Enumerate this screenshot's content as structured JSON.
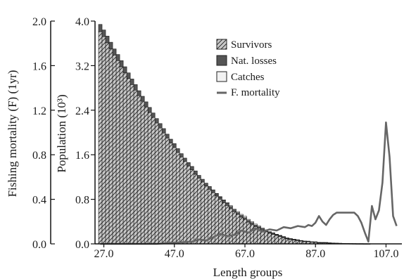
{
  "chart_data": {
    "type": "bar",
    "xlabel": "Length groups",
    "ylabel": "Population (10³)",
    "y2label": "Fishing mortality (F) (1yr)",
    "x_tick_labels": [
      "27.0",
      "47.0",
      "67.0",
      "87.0",
      "107.0"
    ],
    "y_tick_labels": [
      "0.0",
      "0.8",
      "1.6",
      "2.4",
      "3.2",
      "4.0"
    ],
    "y2_tick_labels": [
      "0.0",
      "0.4",
      "0.8",
      "1.2",
      "1.6",
      "2.0"
    ],
    "xlim": [
      24.5,
      111.5
    ],
    "ylim": [
      0,
      4.0
    ],
    "y2lim": [
      0,
      2.0
    ],
    "legend_position": "top-right",
    "x": [
      26,
      27,
      28,
      29,
      30,
      31,
      32,
      33,
      34,
      35,
      36,
      37,
      38,
      39,
      40,
      41,
      42,
      43,
      44,
      45,
      46,
      47,
      48,
      49,
      50,
      51,
      52,
      53,
      54,
      55,
      56,
      57,
      58,
      59,
      60,
      61,
      62,
      63,
      64,
      65,
      66,
      67,
      68,
      69,
      70,
      71,
      72,
      73,
      74,
      75,
      76,
      77,
      78,
      79,
      80,
      81,
      82,
      83,
      84,
      85,
      86,
      87,
      88,
      89,
      90,
      91,
      92,
      93,
      94,
      95,
      96,
      97,
      98,
      99,
      100,
      101,
      102
    ],
    "series": [
      {
        "name": "Survivors",
        "kind": "stacked-bar",
        "color": "#c8c8c8",
        "values": [
          3.81,
          3.72,
          3.61,
          3.5,
          3.39,
          3.29,
          3.18,
          3.07,
          2.97,
          2.86,
          2.76,
          2.66,
          2.56,
          2.46,
          2.36,
          2.27,
          2.17,
          2.08,
          1.99,
          1.9,
          1.81,
          1.73,
          1.64,
          1.56,
          1.48,
          1.4,
          1.33,
          1.25,
          1.18,
          1.11,
          1.04,
          0.98,
          0.92,
          0.86,
          0.8,
          0.74,
          0.69,
          0.63,
          0.58,
          0.53,
          0.48,
          0.44,
          0.39,
          0.35,
          0.31,
          0.28,
          0.25,
          0.22,
          0.19,
          0.17,
          0.15,
          0.13,
          0.11,
          0.09,
          0.08,
          0.07,
          0.06,
          0.05,
          0.04,
          0.04,
          0.03,
          0.03,
          0.02,
          0.02,
          0.02,
          0.015,
          0.012,
          0.01,
          0.008,
          0.006,
          0.005,
          0.004,
          0.003,
          0.002,
          0.002,
          0.001,
          0.001
        ]
      },
      {
        "name": "Nat. losses",
        "kind": "stacked-bar",
        "color": "#555555",
        "values": [
          0.13,
          0.12,
          0.12,
          0.12,
          0.11,
          0.11,
          0.11,
          0.11,
          0.1,
          0.1,
          0.1,
          0.09,
          0.09,
          0.09,
          0.09,
          0.08,
          0.08,
          0.08,
          0.08,
          0.07,
          0.07,
          0.07,
          0.07,
          0.06,
          0.06,
          0.06,
          0.06,
          0.06,
          0.05,
          0.05,
          0.05,
          0.05,
          0.05,
          0.04,
          0.04,
          0.04,
          0.04,
          0.04,
          0.03,
          0.03,
          0.03,
          0.03,
          0.03,
          0.03,
          0.025,
          0.025,
          0.02,
          0.02,
          0.02,
          0.02,
          0.015,
          0.015,
          0.015,
          0.012,
          0.01,
          0.01,
          0.01,
          0.008,
          0.008,
          0.007,
          0.006,
          0.005,
          0.005,
          0.004,
          0.004,
          0.003,
          0.003,
          0.002,
          0.002,
          0.002,
          0.001,
          0.001,
          0.001,
          0.001,
          0.001,
          0.001,
          0.001
        ]
      },
      {
        "name": "Catches",
        "kind": "stacked-bar",
        "color": "#f2f2f2",
        "values": [
          0,
          0,
          0,
          0,
          0,
          0,
          0,
          0,
          0,
          0,
          0,
          0,
          0,
          0,
          0,
          0,
          0,
          0,
          0,
          0,
          0,
          0,
          0,
          0,
          0,
          0,
          0,
          0,
          0,
          0,
          0,
          0,
          0,
          0.005,
          0.008,
          0.01,
          0.012,
          0.015,
          0.015,
          0.02,
          0.02,
          0.025,
          0.02,
          0.02,
          0.02,
          0.015,
          0.015,
          0.012,
          0.01,
          0.01,
          0.008,
          0.008,
          0.006,
          0.005,
          0.005,
          0.004,
          0.004,
          0.003,
          0.003,
          0.002,
          0.002,
          0.002,
          0.002,
          0.002,
          0.001,
          0.001,
          0.001,
          0.001,
          0.001,
          0.001,
          0.001,
          0.001,
          0.001,
          0.001,
          0.001,
          0.001,
          0.001
        ]
      },
      {
        "name": "F. mortality",
        "kind": "line",
        "axis": "right",
        "color": "#666666",
        "x": [
          26,
          30,
          34,
          38,
          42,
          46,
          50,
          52,
          54,
          56,
          58,
          60,
          62,
          64,
          66,
          68,
          70,
          72,
          74,
          76,
          78,
          80,
          82,
          84,
          85,
          86,
          87,
          88,
          89,
          90,
          91,
          92,
          93,
          94,
          95,
          96,
          97,
          98,
          99,
          100,
          101,
          102,
          103,
          104,
          105,
          106,
          107,
          108,
          109,
          110
        ],
        "values": [
          0.0,
          0.0,
          0.0,
          0.0,
          0.0,
          0.01,
          0.015,
          0.02,
          0.04,
          0.03,
          0.06,
          0.09,
          0.07,
          0.08,
          0.12,
          0.1,
          0.14,
          0.11,
          0.13,
          0.12,
          0.15,
          0.14,
          0.16,
          0.15,
          0.17,
          0.16,
          0.19,
          0.25,
          0.2,
          0.17,
          0.22,
          0.26,
          0.28,
          0.28,
          0.28,
          0.28,
          0.28,
          0.28,
          0.25,
          0.19,
          0.1,
          0.02,
          0.34,
          0.22,
          0.3,
          0.55,
          1.09,
          0.78,
          0.25,
          0.16
        ]
      }
    ]
  }
}
